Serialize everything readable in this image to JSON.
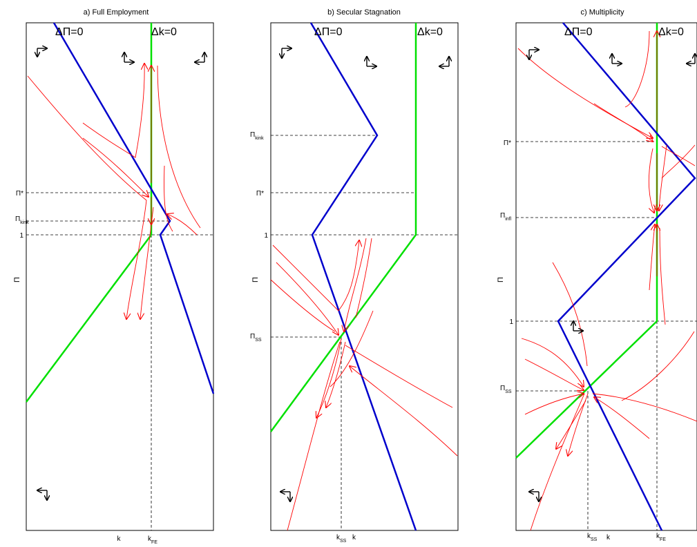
{
  "panels": [
    {
      "title": "a) Full Employment",
      "pi_label": "Π",
      "nullcline_pi": "ΔΠ=0",
      "nullcline_k": "Δk=0",
      "y_ticks": [
        {
          "main": "Π*",
          "sub": ""
        },
        {
          "main": "Π",
          "sub": "kink"
        },
        {
          "main": "1",
          "sub": ""
        }
      ],
      "x_ticks": [
        {
          "main": "k",
          "sub": ""
        },
        {
          "main": "k",
          "sub": "FE"
        }
      ]
    },
    {
      "title": "b) Secular Stagnation",
      "pi_label": "Π",
      "nullcline_pi": "ΔΠ=0",
      "nullcline_k": "Δk=0",
      "y_ticks": [
        {
          "main": "Π",
          "sub": "kink"
        },
        {
          "main": "Π*",
          "sub": ""
        },
        {
          "main": "1",
          "sub": ""
        },
        {
          "main": "Π",
          "sub": "SS"
        }
      ],
      "x_ticks": [
        {
          "main": "k",
          "sub": "SS"
        },
        {
          "main": "k",
          "sub": ""
        }
      ]
    },
    {
      "title": "c) Multiplicity",
      "pi_label": "Π",
      "nullcline_pi": "ΔΠ=0",
      "nullcline_k": "Δk=0",
      "y_ticks": [
        {
          "main": "Π*",
          "sub": ""
        },
        {
          "main": "Π",
          "sub": "infl"
        },
        {
          "main": "1",
          "sub": ""
        },
        {
          "main": "Π",
          "sub": "SS"
        }
      ],
      "x_ticks": [
        {
          "main": "k",
          "sub": "SS"
        },
        {
          "main": "k",
          "sub": ""
        },
        {
          "main": "k",
          "sub": "FE"
        }
      ]
    }
  ],
  "colors": {
    "pi_nullcline": "#0000cc",
    "k_nullcline": "#00e000",
    "trajectories": "#ff0000",
    "axes": "#000000",
    "direction_arrows": "#000000"
  }
}
